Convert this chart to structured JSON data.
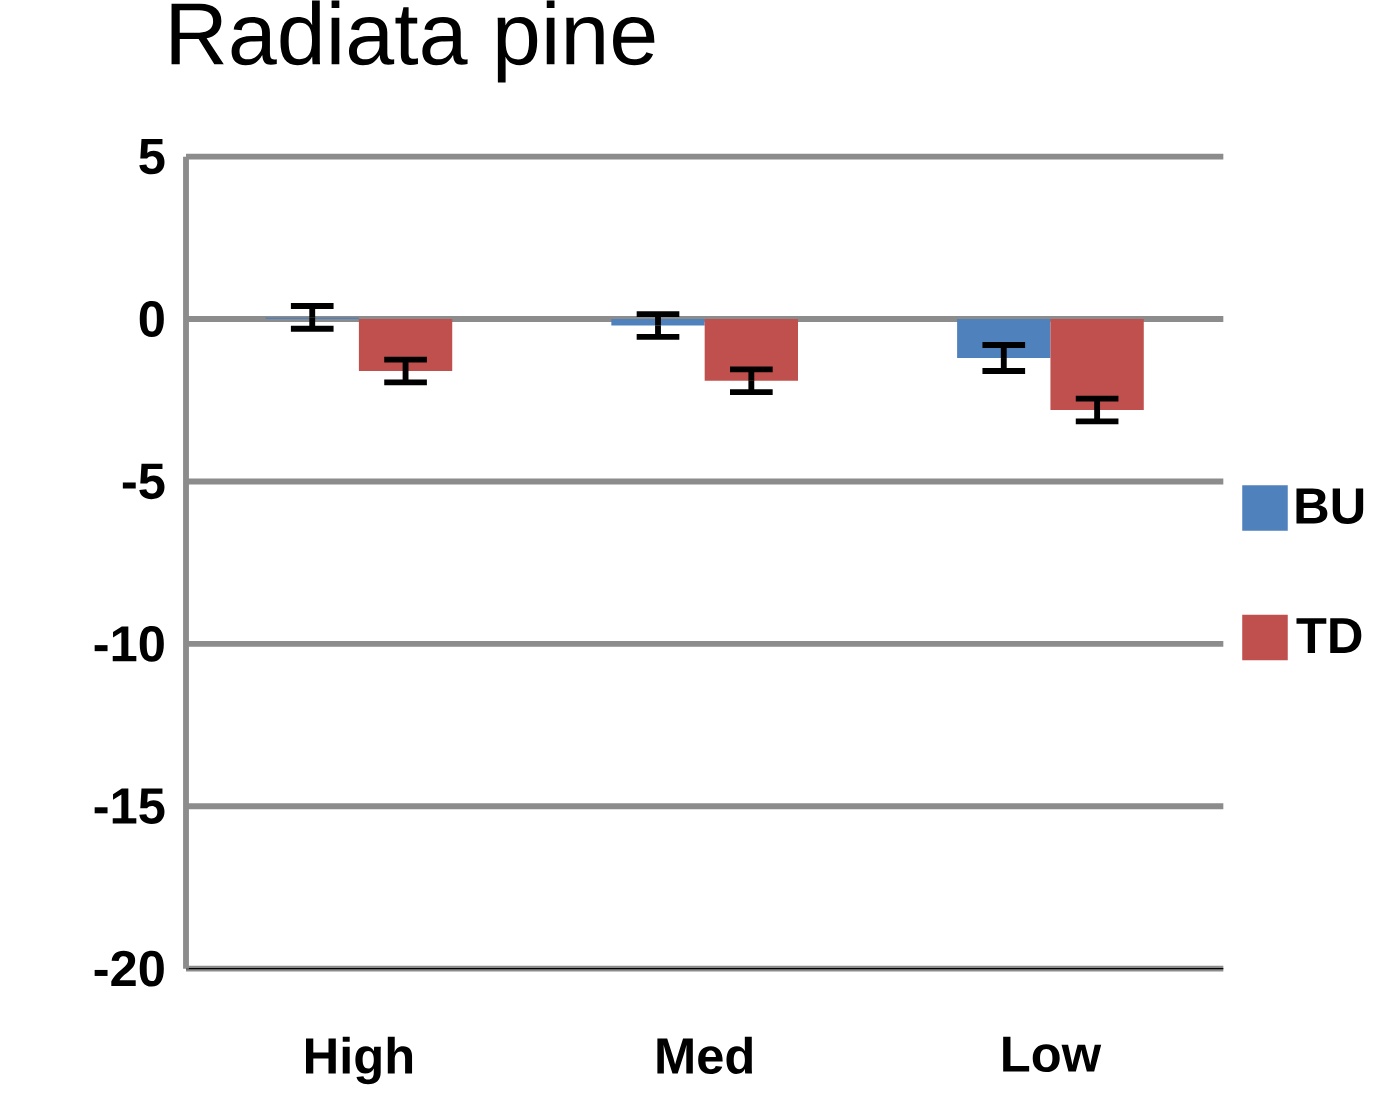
{
  "chart_data": {
    "type": "bar",
    "title": "Radiata pine",
    "categories": [
      "High",
      "Med",
      "Low"
    ],
    "series": [
      {
        "name": "BU",
        "color": "#4f81bd",
        "values": [
          0.05,
          -0.2,
          -1.2
        ],
        "errors": [
          0.35,
          0.35,
          0.4
        ]
      },
      {
        "name": "TD",
        "color": "#c0504d",
        "values": [
          -1.6,
          -1.9,
          -2.8
        ],
        "errors": [
          0.35,
          0.35,
          0.35
        ]
      }
    ],
    "ylim": [
      -20,
      5
    ],
    "yticks": [
      -20,
      -15,
      -10,
      -5,
      0,
      5
    ],
    "grid": "y",
    "legend": "right"
  }
}
